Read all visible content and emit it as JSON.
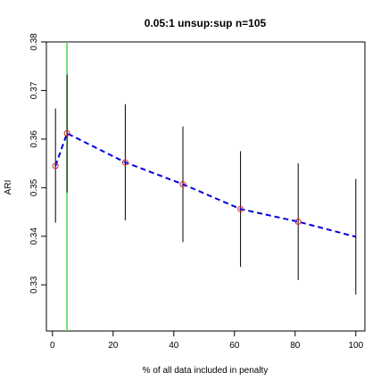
{
  "chart_data": {
    "type": "line",
    "title": "0.05:1 unsup:sup n=105",
    "xlabel": "% of all data included in penalty",
    "ylabel": "ARI",
    "xlim": [
      -2,
      103
    ],
    "ylim": [
      0.3205,
      0.38
    ],
    "x_ticks": [
      0,
      20,
      40,
      60,
      80,
      100
    ],
    "y_ticks": [
      0.33,
      0.34,
      0.35,
      0.36,
      0.37,
      0.38
    ],
    "x_tick_labels": [
      "0",
      "20",
      "40",
      "60",
      "80",
      "100"
    ],
    "y_tick_labels": [
      "0.33",
      "0.34",
      "0.35",
      "0.36",
      "0.37",
      "0.38"
    ],
    "grid": false,
    "vertical_line": {
      "x": 4.8,
      "color": "#44dd44"
    },
    "line_color": "#0000dd",
    "point_color": "#dd2222",
    "errorbar_color": "#000000",
    "points": [
      {
        "x": 1,
        "y": 0.3545,
        "low": 0.3428,
        "high": 0.3663,
        "marker": true
      },
      {
        "x": 4.8,
        "y": 0.3612,
        "low": 0.349,
        "high": 0.3733,
        "marker": true
      },
      {
        "x": 24,
        "y": 0.3552,
        "low": 0.3433,
        "high": 0.3672,
        "marker": true
      },
      {
        "x": 43,
        "y": 0.3507,
        "low": 0.3388,
        "high": 0.3626,
        "marker": true
      },
      {
        "x": 62,
        "y": 0.3456,
        "low": 0.3337,
        "high": 0.3575,
        "marker": true
      },
      {
        "x": 81,
        "y": 0.343,
        "low": 0.331,
        "high": 0.355,
        "marker": true
      },
      {
        "x": 100,
        "y": 0.3399,
        "low": 0.328,
        "high": 0.3518,
        "marker": false
      }
    ]
  }
}
